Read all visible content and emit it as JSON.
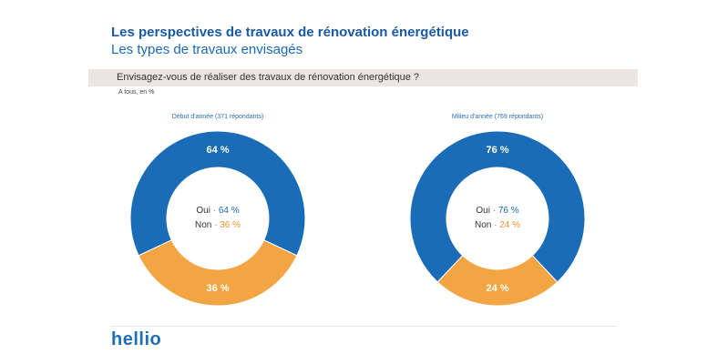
{
  "header": {
    "title": "Les perspectives de travaux de rénovation énergétique",
    "subtitle": "Les types de travaux envisagés"
  },
  "question": "Envisagez-vous de réaliser des travaux de rénovation énergétique ?",
  "base_note": "A tous, en %",
  "colors": {
    "oui": "#1a6cb7",
    "non": "#f4a543",
    "oui_text": "#1a6cb7",
    "non_text": "#e8942a"
  },
  "chart_data": [
    {
      "type": "pie",
      "title": "Début d'année (371 répondants)",
      "categories": [
        "Oui",
        "Non"
      ],
      "values": [
        64,
        36
      ],
      "labels": [
        "64 %",
        "36 %"
      ],
      "legend": [
        {
          "name": "Oui",
          "sep": "·",
          "value": "64 %"
        },
        {
          "name": "Non",
          "sep": "·",
          "value": "36 %"
        }
      ]
    },
    {
      "type": "pie",
      "title": "Milieu d'année (769 répondants)",
      "categories": [
        "Oui",
        "Non"
      ],
      "values": [
        76,
        24
      ],
      "labels": [
        "76 %",
        "24 %"
      ],
      "legend": [
        {
          "name": "Oui",
          "sep": "·",
          "value": "76 %"
        },
        {
          "name": "Non",
          "sep": "·",
          "value": "24 %"
        }
      ]
    }
  ],
  "footer": {
    "logo": "hellio"
  }
}
